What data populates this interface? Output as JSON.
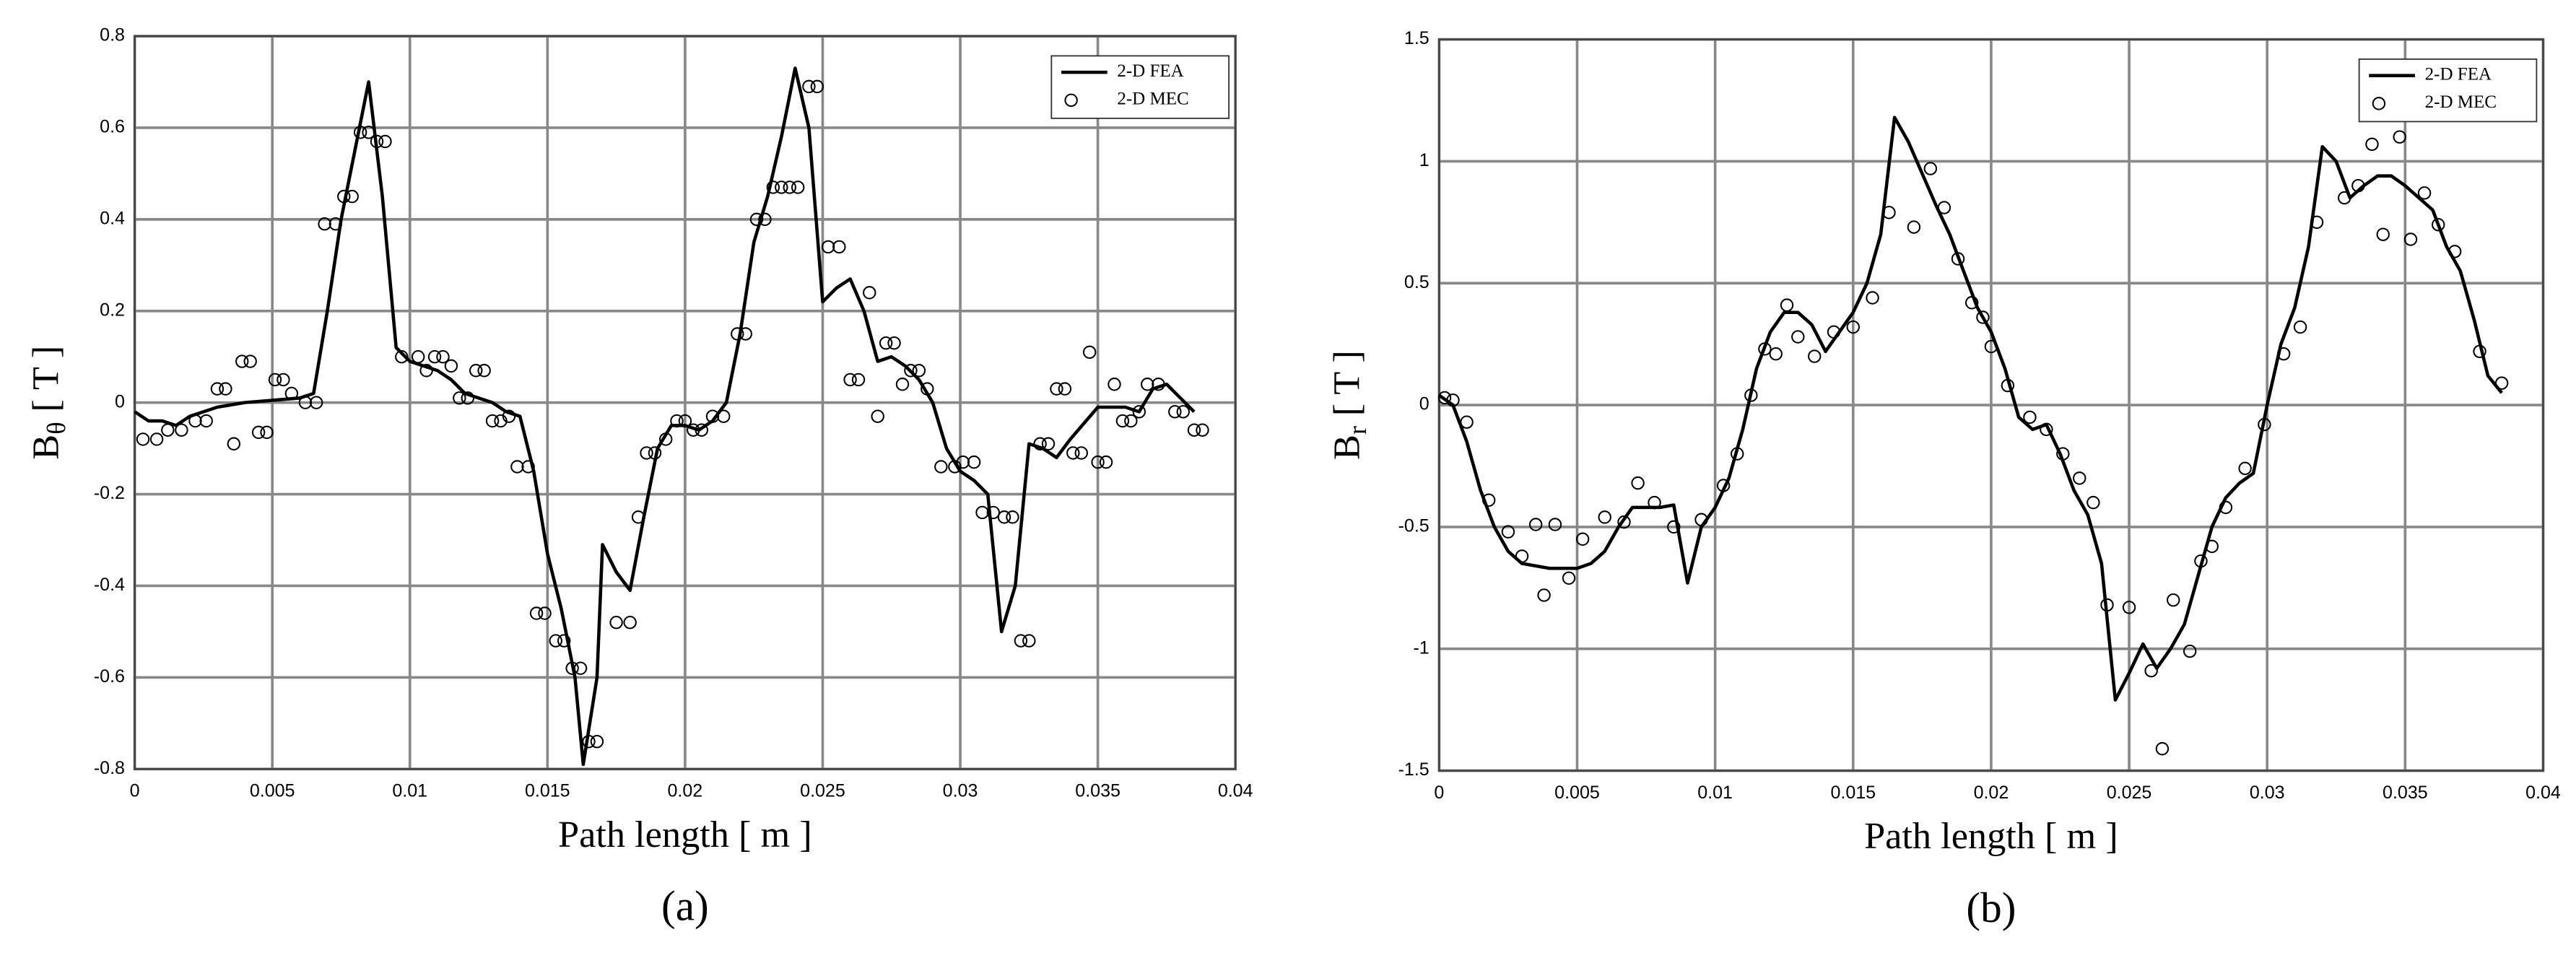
{
  "chart_data": [
    {
      "type": "line",
      "caption": "(a)",
      "xlabel": "Path length [ m ]",
      "ylabel": [
        "B",
        "θ",
        "[ T ]"
      ],
      "xlim": [
        0,
        0.04
      ],
      "xticks": [
        0,
        0.005,
        0.01,
        0.015,
        0.02,
        0.025,
        0.03,
        0.035,
        0.04
      ],
      "ylim": [
        -0.8,
        0.8
      ],
      "yticks": [
        -0.8,
        -0.6,
        -0.4,
        -0.2,
        0,
        0.2,
        0.4,
        0.6,
        0.8
      ],
      "grid": true,
      "legend": "upper right",
      "series": [
        {
          "name": "2-D FEA",
          "mode": "line",
          "color": "#000000",
          "x": [
            0,
            0.0005,
            0.001,
            0.0015,
            0.002,
            0.003,
            0.004,
            0.005,
            0.006,
            0.0065,
            0.007,
            0.0075,
            0.008,
            0.0085,
            0.009,
            0.0095,
            0.01,
            0.011,
            0.0115,
            0.012,
            0.013,
            0.0135,
            0.014,
            0.0145,
            0.015,
            0.0155,
            0.016,
            0.0163,
            0.0168,
            0.017,
            0.0175,
            0.018,
            0.0185,
            0.019,
            0.0195,
            0.02,
            0.0205,
            0.021,
            0.0215,
            0.022,
            0.0225,
            0.023,
            0.0235,
            0.024,
            0.0245,
            0.025,
            0.0255,
            0.026,
            0.0265,
            0.027,
            0.0275,
            0.028,
            0.0285,
            0.029,
            0.0295,
            0.03,
            0.0305,
            0.031,
            0.0315,
            0.032,
            0.0325,
            0.033,
            0.0335,
            0.034,
            0.035,
            0.036,
            0.0365,
            0.037,
            0.0375,
            0.038,
            0.0385
          ],
          "values": [
            -0.02,
            -0.04,
            -0.04,
            -0.05,
            -0.03,
            -0.01,
            0,
            0.005,
            0.01,
            0.02,
            0.2,
            0.4,
            0.55,
            0.7,
            0.45,
            0.12,
            0.09,
            0.07,
            0.05,
            0.02,
            0,
            -0.02,
            -0.03,
            -0.15,
            -0.33,
            -0.45,
            -0.6,
            -0.79,
            -0.6,
            -0.31,
            -0.37,
            -0.41,
            -0.25,
            -0.1,
            -0.05,
            -0.05,
            -0.06,
            -0.04,
            0,
            0.15,
            0.35,
            0.45,
            0.58,
            0.73,
            0.6,
            0.22,
            0.25,
            0.27,
            0.2,
            0.09,
            0.1,
            0.08,
            0.05,
            0,
            -0.1,
            -0.15,
            -0.17,
            -0.2,
            -0.5,
            -0.4,
            -0.09,
            -0.1,
            -0.12,
            -0.08,
            -0.01,
            -0.01,
            -0.02,
            0.03,
            0.04,
            0.01,
            -0.02
          ]
        },
        {
          "name": "2-D MEC",
          "mode": "markers",
          "color": "#000000",
          "x": [
            0.0003,
            0.0008,
            0.0012,
            0.0017,
            0.0022,
            0.0026,
            0.003,
            0.0033,
            0.0036,
            0.0039,
            0.0042,
            0.0045,
            0.0048,
            0.0051,
            0.0054,
            0.0057,
            0.0062,
            0.0066,
            0.0069,
            0.0073,
            0.0076,
            0.0079,
            0.0082,
            0.0085,
            0.0088,
            0.0091,
            0.0097,
            0.0103,
            0.0106,
            0.0109,
            0.0112,
            0.0115,
            0.0118,
            0.0121,
            0.0124,
            0.0127,
            0.013,
            0.0133,
            0.0136,
            0.0139,
            0.0143,
            0.0146,
            0.0149,
            0.0153,
            0.0156,
            0.0159,
            0.0162,
            0.0165,
            0.0168,
            0.0175,
            0.018,
            0.0183,
            0.0186,
            0.0189,
            0.0193,
            0.0197,
            0.02,
            0.0203,
            0.0206,
            0.021,
            0.0214,
            0.0219,
            0.0222,
            0.0226,
            0.0229,
            0.0232,
            0.0235,
            0.0238,
            0.0241,
            0.0245,
            0.0248,
            0.0252,
            0.0256,
            0.026,
            0.0263,
            0.0267,
            0.027,
            0.0273,
            0.0276,
            0.0279,
            0.0282,
            0.0285,
            0.0288,
            0.0293,
            0.0298,
            0.0301,
            0.0305,
            0.0308,
            0.0312,
            0.0316,
            0.0319,
            0.0322,
            0.0325,
            0.0329,
            0.0332,
            0.0335,
            0.0338,
            0.0341,
            0.0344,
            0.0347,
            0.035,
            0.0353,
            0.0356,
            0.0359,
            0.0362,
            0.0365,
            0.0368,
            0.0372,
            0.0378,
            0.0381,
            0.0385,
            0.0388
          ],
          "values": [
            -0.08,
            -0.08,
            -0.06,
            -0.06,
            -0.04,
            -0.04,
            0.03,
            0.03,
            -0.09,
            0.09,
            0.09,
            -0.065,
            -0.065,
            0.05,
            0.05,
            0.02,
            0,
            0,
            0.39,
            0.39,
            0.45,
            0.45,
            0.59,
            0.59,
            0.57,
            0.57,
            0.1,
            0.1,
            0.07,
            0.1,
            0.1,
            0.08,
            0.01,
            0.01,
            0.07,
            0.07,
            -0.04,
            -0.04,
            -0.03,
            -0.14,
            -0.14,
            -0.46,
            -0.46,
            -0.52,
            -0.52,
            -0.58,
            -0.58,
            -0.74,
            -0.74,
            -0.48,
            -0.48,
            -0.25,
            -0.11,
            -0.11,
            -0.08,
            -0.04,
            -0.04,
            -0.06,
            -0.06,
            -0.03,
            -0.03,
            0.15,
            0.15,
            0.4,
            0.4,
            0.47,
            0.47,
            0.47,
            0.47,
            0.69,
            0.69,
            0.34,
            0.34,
            0.05,
            0.05,
            0.24,
            -0.03,
            0.13,
            0.13,
            0.04,
            0.07,
            0.07,
            0.03,
            -0.14,
            -0.14,
            -0.13,
            -0.13,
            -0.24,
            -0.24,
            -0.25,
            -0.25,
            -0.52,
            -0.52,
            -0.09,
            -0.09,
            0.03,
            0.03,
            -0.11,
            -0.11,
            0.11,
            -0.13,
            -0.13,
            0.04,
            -0.04,
            -0.04,
            -0.02,
            0.04,
            0.04,
            -0.02,
            -0.02,
            -0.06,
            -0.06
          ]
        }
      ]
    },
    {
      "type": "line",
      "caption": "(b)",
      "xlabel": "Path length [ m ]",
      "ylabel": [
        "B",
        "r",
        "[ T ]"
      ],
      "xlim": [
        0,
        0.04
      ],
      "xticks": [
        0,
        0.005,
        0.01,
        0.015,
        0.02,
        0.025,
        0.03,
        0.035,
        0.04
      ],
      "ylim": [
        -1.5,
        1.5
      ],
      "yticks": [
        -1.5,
        -1,
        -0.5,
        0,
        0.5,
        1,
        1.5
      ],
      "grid": true,
      "legend": "upper right",
      "series": [
        {
          "name": "2-D FEA",
          "mode": "line",
          "color": "#000000",
          "x": [
            0,
            0.0005,
            0.001,
            0.0015,
            0.002,
            0.0025,
            0.003,
            0.004,
            0.005,
            0.0055,
            0.006,
            0.0065,
            0.007,
            0.008,
            0.0085,
            0.009,
            0.0095,
            0.01,
            0.0105,
            0.011,
            0.0115,
            0.012,
            0.0125,
            0.013,
            0.0135,
            0.014,
            0.0145,
            0.015,
            0.0155,
            0.016,
            0.0165,
            0.017,
            0.0175,
            0.018,
            0.0185,
            0.019,
            0.0195,
            0.02,
            0.0205,
            0.021,
            0.0215,
            0.022,
            0.0225,
            0.023,
            0.0235,
            0.024,
            0.0245,
            0.025,
            0.0255,
            0.026,
            0.0265,
            0.027,
            0.0275,
            0.028,
            0.0285,
            0.029,
            0.0295,
            0.03,
            0.0305,
            0.031,
            0.0315,
            0.032,
            0.0325,
            0.033,
            0.0335,
            0.034,
            0.0345,
            0.035,
            0.0355,
            0.036,
            0.0365,
            0.037,
            0.0375,
            0.038,
            0.0385
          ],
          "values": [
            0.04,
            0,
            -0.15,
            -0.35,
            -0.5,
            -0.6,
            -0.65,
            -0.67,
            -0.67,
            -0.65,
            -0.6,
            -0.5,
            -0.42,
            -0.42,
            -0.41,
            -0.73,
            -0.5,
            -0.42,
            -0.3,
            -0.1,
            0.15,
            0.3,
            0.38,
            0.38,
            0.33,
            0.22,
            0.3,
            0.38,
            0.5,
            0.7,
            1.18,
            1.08,
            0.95,
            0.82,
            0.7,
            0.55,
            0.4,
            0.3,
            0.15,
            -0.05,
            -0.1,
            -0.08,
            -0.2,
            -0.35,
            -0.45,
            -0.65,
            -1.21,
            -1.1,
            -0.98,
            -1.08,
            -1,
            -0.9,
            -0.7,
            -0.5,
            -0.38,
            -0.32,
            -0.28,
            0,
            0.25,
            0.4,
            0.65,
            1.06,
            1,
            0.85,
            0.9,
            0.94,
            0.94,
            0.9,
            0.85,
            0.8,
            0.65,
            0.55,
            0.35,
            0.12,
            0.05
          ]
        },
        {
          "name": "2-D MEC",
          "mode": "markers",
          "color": "#000000",
          "x": [
            0.0002,
            0.0005,
            0.001,
            0.0018,
            0.0025,
            0.003,
            0.0035,
            0.0038,
            0.0042,
            0.0047,
            0.0052,
            0.006,
            0.0067,
            0.0072,
            0.0078,
            0.0085,
            0.0095,
            0.0103,
            0.0108,
            0.0113,
            0.0118,
            0.0122,
            0.0126,
            0.013,
            0.0136,
            0.0143,
            0.015,
            0.0157,
            0.0163,
            0.0172,
            0.0178,
            0.0183,
            0.0188,
            0.0193,
            0.0197,
            0.02,
            0.0206,
            0.0214,
            0.022,
            0.0226,
            0.0232,
            0.0237,
            0.0242,
            0.025,
            0.0258,
            0.0262,
            0.0266,
            0.0272,
            0.0276,
            0.028,
            0.0285,
            0.0292,
            0.0299,
            0.0306,
            0.0312,
            0.0318,
            0.0328,
            0.0333,
            0.0338,
            0.0342,
            0.0348,
            0.0352,
            0.0357,
            0.0362,
            0.0368,
            0.0377,
            0.0385
          ],
          "values": [
            0.03,
            0.02,
            -0.07,
            -0.39,
            -0.52,
            -0.62,
            -0.49,
            -0.78,
            -0.49,
            -0.71,
            -0.55,
            -0.46,
            -0.48,
            -0.32,
            -0.4,
            -0.5,
            -0.47,
            -0.33,
            -0.2,
            0.04,
            0.23,
            0.21,
            0.41,
            0.28,
            0.2,
            0.3,
            0.32,
            0.44,
            0.79,
            0.73,
            0.97,
            0.81,
            0.6,
            0.42,
            0.36,
            0.24,
            0.08,
            -0.05,
            -0.1,
            -0.2,
            -0.3,
            -0.4,
            -0.82,
            -0.83,
            -1.09,
            -1.41,
            -0.8,
            -1.01,
            -0.64,
            -0.58,
            -0.42,
            -0.26,
            -0.08,
            0.21,
            0.32,
            0.75,
            0.85,
            0.9,
            1.07,
            0.7,
            1.1,
            0.68,
            0.87,
            0.74,
            0.63,
            0.22,
            0.09
          ]
        }
      ]
    }
  ]
}
